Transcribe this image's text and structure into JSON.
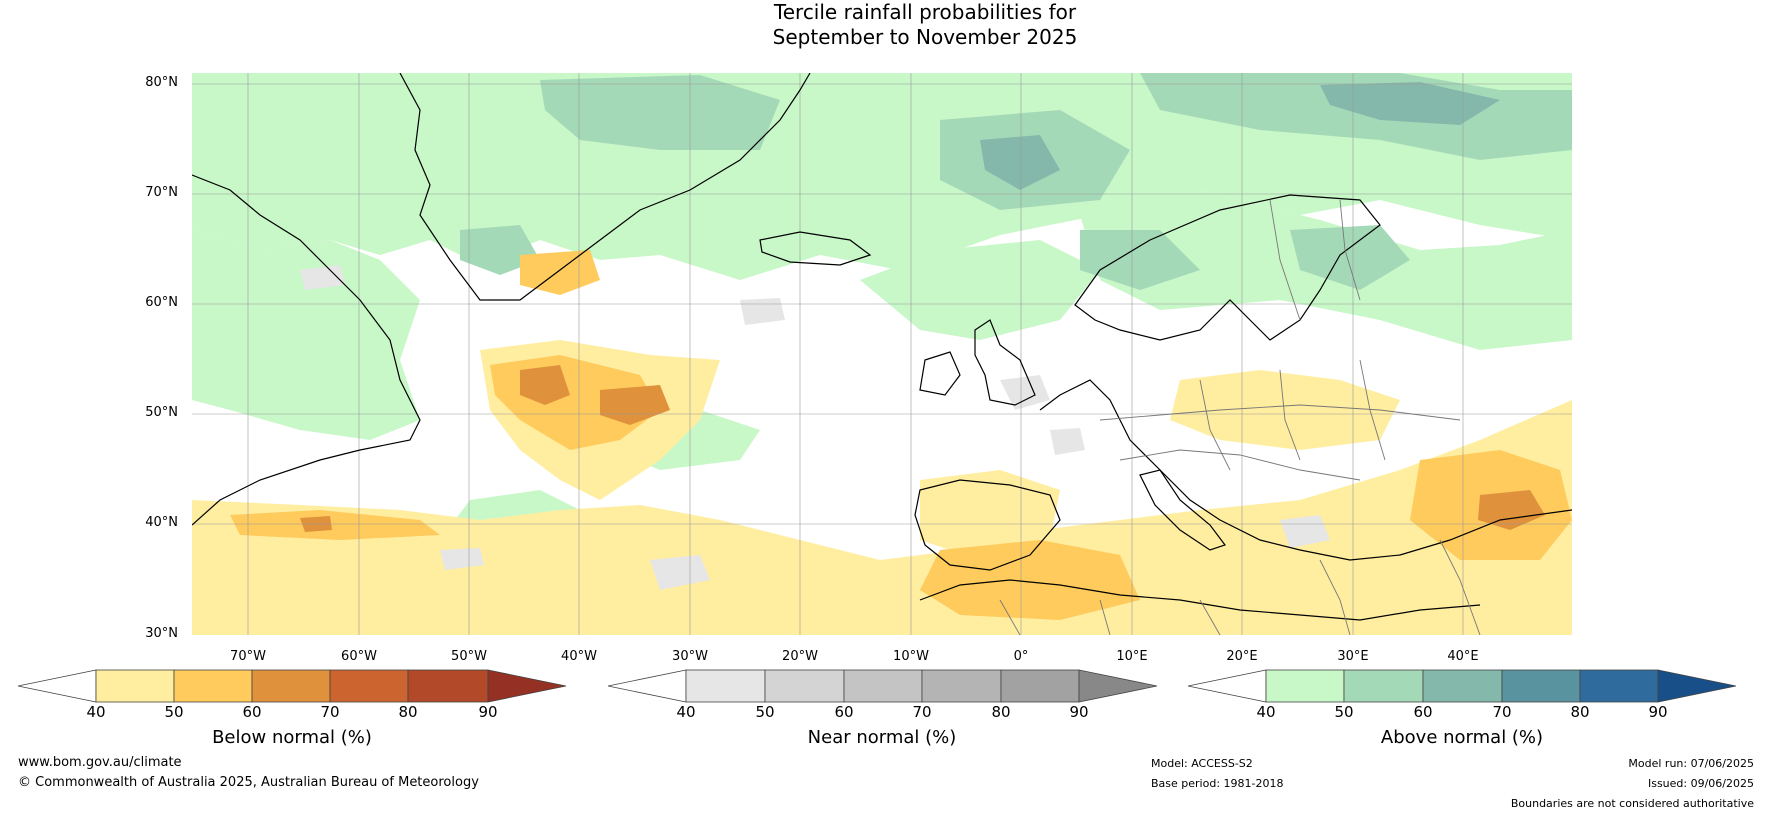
{
  "title": {
    "line1": "Tercile rainfall probabilities for",
    "line2": "September to November 2025"
  },
  "map": {
    "region": "North Atlantic and Europe",
    "lat_labels": [
      "80°N",
      "70°N",
      "60°N",
      "50°N",
      "40°N",
      "30°N"
    ],
    "lon_labels": [
      "70°W",
      "60°W",
      "50°W",
      "40°W",
      "30°W",
      "20°W",
      "10°W",
      "0°",
      "10°E",
      "20°E",
      "30°E",
      "40°E"
    ]
  },
  "legends": {
    "below": {
      "title": "Below normal (%)",
      "ticks": [
        "40",
        "50",
        "60",
        "70",
        "80",
        "90"
      ],
      "colors": [
        "#ffffff",
        "#ffeda0",
        "#fecb5c",
        "#e0913c",
        "#cc6430",
        "#b24a2a",
        "#943024"
      ]
    },
    "near": {
      "title": "Near normal (%)",
      "ticks": [
        "40",
        "50",
        "60",
        "70",
        "80",
        "90"
      ],
      "colors": [
        "#ffffff",
        "#e6e6e6",
        "#d4d4d4",
        "#c4c4c4",
        "#b4b4b4",
        "#a2a2a2",
        "#888888"
      ]
    },
    "above": {
      "title": "Above normal (%)",
      "ticks": [
        "40",
        "50",
        "60",
        "70",
        "80",
        "90"
      ],
      "colors": [
        "#ffffff",
        "#c8f7c8",
        "#a4d9b8",
        "#84b8ab",
        "#5a93a0",
        "#2f6b9c",
        "#184f88"
      ]
    }
  },
  "footer": {
    "website": "www.bom.gov.au/climate",
    "copyright": "© Commonwealth of Australia 2025, Australian Bureau of Meteorology",
    "model": "Model: ACCESS-S2",
    "base_period": "Base period: 1981-2018",
    "model_run": "Model run: 07/06/2025",
    "issued": "Issued: 09/06/2025",
    "disclaimer": "Boundaries are not considered authoritative"
  }
}
